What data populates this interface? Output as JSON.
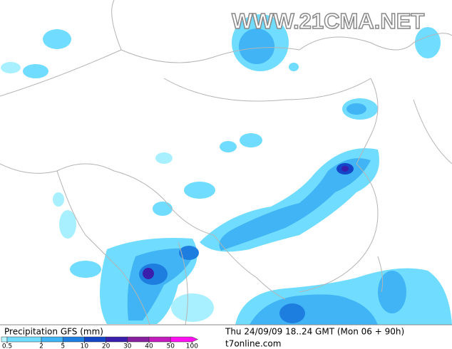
{
  "watermark": "WWW.21CMA.NET",
  "legend": {
    "title": "Precipitation GFS (mm)",
    "levels": [
      0.5,
      2,
      5,
      10,
      20,
      30,
      40,
      50,
      100
    ],
    "colors": [
      "#b8f4ff",
      "#70dcff",
      "#40b4f4",
      "#1e7ee0",
      "#1446c8",
      "#3a1eac",
      "#86209e",
      "#c21cbc",
      "#ff10f0"
    ]
  },
  "footer": {
    "run": "Thu 24/09/09 18..24 GMT (Mon 06 + 90h)",
    "source": "t7online.com"
  }
}
